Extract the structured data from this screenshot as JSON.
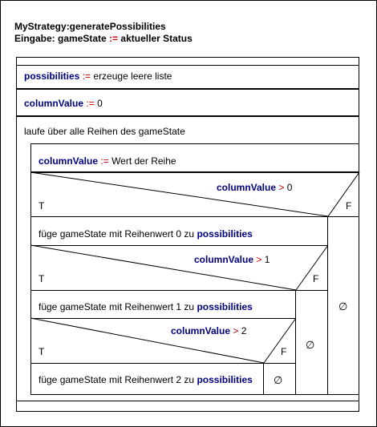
{
  "header": {
    "title": "MyStrategy:generatePossibilities",
    "input_label": "Eingabe:",
    "input_var": "gameState",
    "input_op": ":=",
    "input_value": "aktueller Status"
  },
  "statements": {
    "s1": {
      "var": "possibilities",
      "op": ":=",
      "text": "erzeuge leere liste"
    },
    "s2": {
      "var": "columnValue",
      "op": ":=",
      "text": "0"
    },
    "loop": "laufe über alle Reihen des gameState",
    "s3": {
      "var": "columnValue",
      "op": ":=",
      "text": "Wert der Reihe"
    }
  },
  "conditions": [
    {
      "var": "columnValue",
      "op": ">",
      "value": "0",
      "true_label": "T",
      "false_label": "F",
      "action": {
        "text": "füge gameState mit Reihenwert 0 zu",
        "var": "possibilities"
      },
      "else_symbol": "∅"
    },
    {
      "var": "columnValue",
      "op": ">",
      "value": "1",
      "true_label": "T",
      "false_label": "F",
      "action": {
        "text": "füge gameState mit Reihenwert 1 zu",
        "var": "possibilities"
      },
      "else_symbol": "∅"
    },
    {
      "var": "columnValue",
      "op": ">",
      "value": "2",
      "true_label": "T",
      "false_label": "F",
      "action": {
        "text": "füge gameState mit Reihenwert 2 zu",
        "var": "possibilities"
      },
      "else_symbol": "∅"
    }
  ]
}
